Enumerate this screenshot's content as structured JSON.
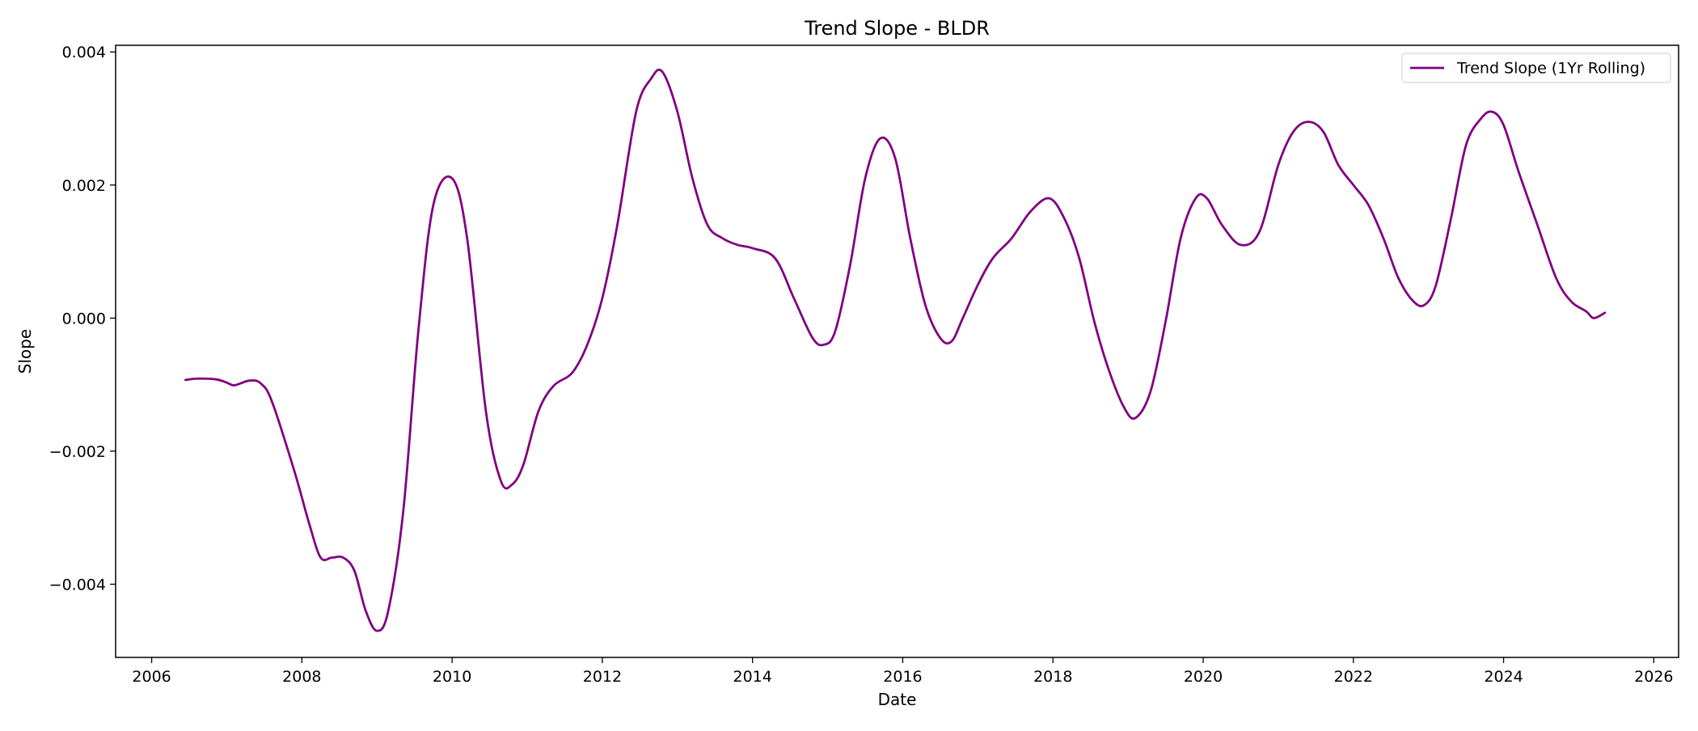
{
  "chart_data": {
    "type": "line",
    "title": "Trend Slope - BLDR",
    "xlabel": "Date",
    "ylabel": "Slope",
    "xlim": [
      2005.52,
      2026.33
    ],
    "ylim": [
      -0.0051,
      0.0041
    ],
    "x_ticks": [
      2006,
      2008,
      2010,
      2012,
      2014,
      2016,
      2018,
      2020,
      2022,
      2024,
      2026
    ],
    "x_tick_labels": [
      "2006",
      "2008",
      "2010",
      "2012",
      "2014",
      "2016",
      "2018",
      "2020",
      "2022",
      "2024",
      "2026"
    ],
    "y_ticks": [
      -0.004,
      -0.002,
      0.0,
      0.002,
      0.004
    ],
    "y_tick_labels": [
      "−0.004",
      "−0.002",
      "0.000",
      "0.002",
      "0.004"
    ],
    "grid": false,
    "legend_position": "upper right",
    "series": [
      {
        "name": "Trend Slope (1Yr Rolling)",
        "color": "#800080",
        "x": [
          2006.45,
          2006.6,
          2006.85,
          2007.0,
          2007.1,
          2007.3,
          2007.45,
          2007.6,
          2007.9,
          2008.1,
          2008.25,
          2008.4,
          2008.55,
          2008.7,
          2008.85,
          2009.0,
          2009.15,
          2009.35,
          2009.55,
          2009.75,
          2010.0,
          2010.2,
          2010.45,
          2010.65,
          2010.8,
          2010.95,
          2011.15,
          2011.35,
          2011.6,
          2011.8,
          2012.0,
          2012.2,
          2012.45,
          2012.65,
          2012.8,
          2013.0,
          2013.2,
          2013.4,
          2013.6,
          2013.8,
          2014.0,
          2014.3,
          2014.55,
          2014.8,
          2014.95,
          2015.1,
          2015.3,
          2015.5,
          2015.7,
          2015.9,
          2016.1,
          2016.3,
          2016.5,
          2016.65,
          2016.8,
          2017.0,
          2017.2,
          2017.45,
          2017.7,
          2017.95,
          2018.15,
          2018.35,
          2018.55,
          2018.75,
          2018.95,
          2019.1,
          2019.3,
          2019.5,
          2019.7,
          2019.9,
          2020.05,
          2020.25,
          2020.5,
          2020.75,
          2021.0,
          2021.2,
          2021.4,
          2021.6,
          2021.8,
          2022.0,
          2022.2,
          2022.4,
          2022.6,
          2022.8,
          2022.95,
          2023.1,
          2023.3,
          2023.5,
          2023.7,
          2023.85,
          2024.0,
          2024.2,
          2024.45,
          2024.7,
          2024.9,
          2025.1,
          2025.2,
          2025.35
        ],
        "y": [
          -0.00093,
          -0.00091,
          -0.00092,
          -0.00097,
          -0.00101,
          -0.00094,
          -0.00098,
          -0.00125,
          -0.0023,
          -0.0031,
          -0.0036,
          -0.0036,
          -0.0036,
          -0.0038,
          -0.0044,
          -0.0047,
          -0.0044,
          -0.0029,
          -0.0002,
          0.0017,
          0.0021,
          0.0012,
          -0.0014,
          -0.00245,
          -0.0025,
          -0.0022,
          -0.0014,
          -0.00102,
          -0.00082,
          -0.0004,
          0.0003,
          0.0014,
          0.0031,
          0.0036,
          0.0037,
          0.0031,
          0.0021,
          0.0014,
          0.0012,
          0.0011,
          0.00105,
          0.0009,
          0.0003,
          -0.0003,
          -0.0004,
          -0.0002,
          0.0008,
          0.0021,
          0.0027,
          0.0024,
          0.0012,
          0.0002,
          -0.0003,
          -0.00035,
          0.0,
          0.0005,
          0.0009,
          0.0012,
          0.0016,
          0.0018,
          0.0015,
          0.0009,
          -5e-05,
          -0.0008,
          -0.00135,
          -0.0015,
          -0.0011,
          -5e-05,
          0.0012,
          0.0018,
          0.0018,
          0.0014,
          0.0011,
          0.0013,
          0.0023,
          0.0028,
          0.00295,
          0.0028,
          0.0023,
          0.002,
          0.0017,
          0.0012,
          0.0006,
          0.00025,
          0.0002,
          0.0005,
          0.0015,
          0.0026,
          0.003,
          0.0031,
          0.0029,
          0.0022,
          0.0014,
          0.0006,
          0.00025,
          0.0001,
          0.0,
          8e-05
        ]
      }
    ]
  }
}
